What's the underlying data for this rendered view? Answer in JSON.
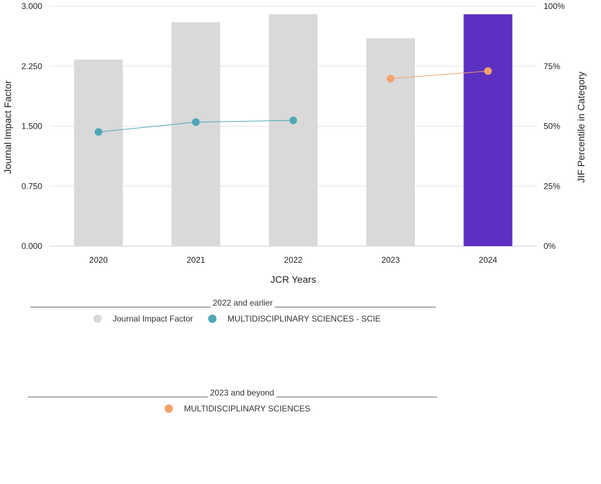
{
  "chart_data": {
    "type": "bar",
    "categories": [
      "2020",
      "2021",
      "2022",
      "2023",
      "2024"
    ],
    "values": [
      2.333,
      2.8,
      2.9,
      2.6,
      2.9
    ],
    "bar_colors": [
      "#d9d9d9",
      "#d9d9d9",
      "#d9d9d9",
      "#d9d9d9",
      "#5c31c2"
    ],
    "xlabel": "JCR Years",
    "ylabel": "Journal Impact Factor",
    "y2label": "JIF Percentile in Category",
    "ylim": [
      0,
      3
    ],
    "y2lim": [
      0,
      100
    ],
    "yticks": [
      "0.000",
      "0.750",
      "1.500",
      "2.250",
      "3.000"
    ],
    "y2ticks": [
      "0%",
      "25%",
      "50%",
      "75%",
      "100%"
    ],
    "grid": true,
    "series": [
      {
        "name": "MULTIDISCIPLINARY SCIENCES - SCIE",
        "axis": "right",
        "color": "#4ea8b8",
        "points": [
          {
            "x": "2020",
            "y": 47.6
          },
          {
            "x": "2021",
            "y": 51.7
          },
          {
            "x": "2022",
            "y": 52.4
          }
        ]
      },
      {
        "name": "MULTIDISCIPLINARY SCIENCES",
        "axis": "right",
        "color": "#f4a06b",
        "points": [
          {
            "x": "2023",
            "y": 69.8
          },
          {
            "x": "2024",
            "y": 73.0
          }
        ]
      }
    ]
  },
  "legend": {
    "group1_header": "_______________________________________ 2022 and earlier _______________________________________",
    "group1_items": [
      {
        "label": "Journal Impact Factor",
        "color": "#d9d9d9"
      },
      {
        "label": "MULTIDISCIPLINARY SCIENCES - SCIE",
        "color": "#4ea8b8"
      }
    ],
    "group2_header": "_______________________________________ 2023 and beyond _______________________________________",
    "group2_items": [
      {
        "label": "MULTIDISCIPLINARY SCIENCES",
        "color": "#f4a06b"
      }
    ]
  }
}
